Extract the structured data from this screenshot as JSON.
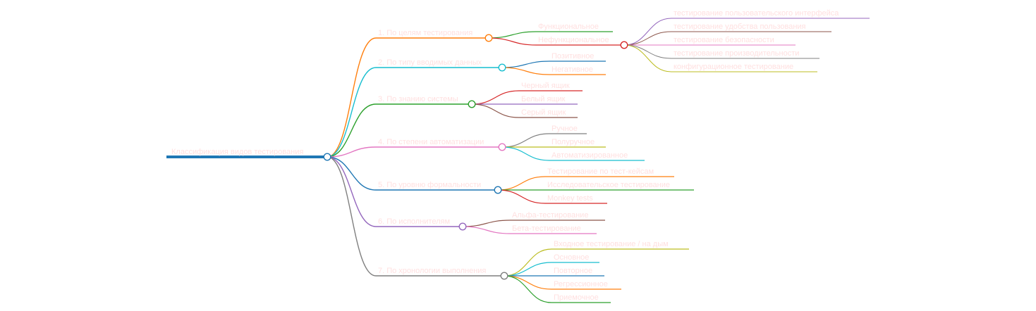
{
  "root": {
    "label": "Классификация видов тестирования",
    "color": "#1f77b4"
  },
  "branches": [
    {
      "label": "1. По целям тестирования",
      "color": "#ff7f0e",
      "children": [
        {
          "label": "Функциональное",
          "color": "#2ca02c"
        },
        {
          "label": "Нефункциональное",
          "color": "#d62728",
          "children": [
            {
              "label": "тестирование пользовательского интерфейса",
              "color": "#9467bd"
            },
            {
              "label": "тестирование удобства пользования",
              "color": "#8c564b"
            },
            {
              "label": "тестирование безопасности",
              "color": "#e377c2"
            },
            {
              "label": "тестирование производительности",
              "color": "#7f7f7f"
            },
            {
              "label": "конфигурационное тестирование",
              "color": "#bcbd22"
            }
          ]
        }
      ]
    },
    {
      "label": "2. По типу вводимых данных",
      "color": "#17becf",
      "children": [
        {
          "label": "Позитивное",
          "color": "#1f77b4"
        },
        {
          "label": "Негативное",
          "color": "#ff7f0e"
        }
      ]
    },
    {
      "label": "3. По знанию системы",
      "color": "#2ca02c",
      "children": [
        {
          "label": "Черный ящик",
          "color": "#d62728"
        },
        {
          "label": "Белый ящик",
          "color": "#9467bd"
        },
        {
          "label": "Серый ящик",
          "color": "#8c564b"
        }
      ]
    },
    {
      "label": "4. По степени автоматизации",
      "color": "#e377c2",
      "children": [
        {
          "label": "Ручное",
          "color": "#7f7f7f"
        },
        {
          "label": "Полуручное",
          "color": "#bcbd22"
        },
        {
          "label": "Автоматизированное",
          "color": "#17becf"
        }
      ]
    },
    {
      "label": "5. По уровню формальности",
      "color": "#1f77b4",
      "children": [
        {
          "label": "Тестирование по тест-кейсам",
          "color": "#ff7f0e"
        },
        {
          "label": "Исследовательское тестирование",
          "color": "#2ca02c"
        },
        {
          "label": "Monkey tests",
          "color": "#d62728"
        }
      ]
    },
    {
      "label": "6. По исполнителям",
      "color": "#9467bd",
      "children": [
        {
          "label": "Альфа-тестирование",
          "color": "#8c564b"
        },
        {
          "label": "Бета-тестирование",
          "color": "#e377c2"
        }
      ]
    },
    {
      "label": "7. По хронологии выполнения",
      "color": "#7f7f7f",
      "children": [
        {
          "label": "Входное тестирование / на дым",
          "color": "#bcbd22"
        },
        {
          "label": "Основное",
          "color": "#17becf"
        },
        {
          "label": "Повторное",
          "color": "#1f77b4"
        },
        {
          "label": "Регрессионное",
          "color": "#ff7f0e"
        },
        {
          "label": "Приемочное",
          "color": "#2ca02c"
        }
      ]
    }
  ]
}
